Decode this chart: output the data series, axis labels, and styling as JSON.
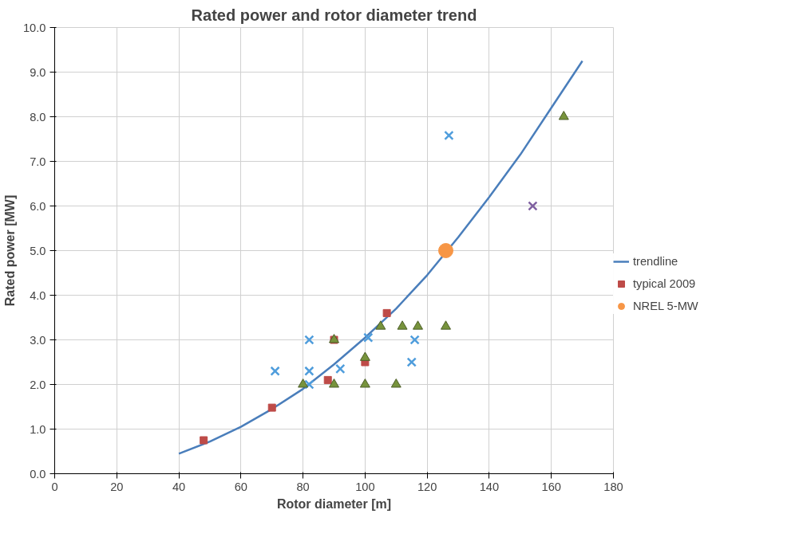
{
  "chart_data": {
    "type": "scatter",
    "title": "Rated power and rotor diameter trend",
    "xlabel": "Rotor diameter [m]",
    "ylabel": "Rated power [MW]",
    "xlim": [
      0,
      180
    ],
    "xticks": [
      0,
      20,
      40,
      60,
      80,
      100,
      120,
      140,
      160,
      180
    ],
    "ylim": [
      0,
      10
    ],
    "yticks": [
      {
        "value": 0,
        "label": "0.0"
      },
      {
        "value": 1,
        "label": "1.0"
      },
      {
        "value": 2,
        "label": "2.0"
      },
      {
        "value": 3,
        "label": "3.0"
      },
      {
        "value": 4,
        "label": "4.0"
      },
      {
        "value": 5,
        "label": "5.0"
      },
      {
        "value": 6,
        "label": "6.0"
      },
      {
        "value": 7,
        "label": "7.0"
      },
      {
        "value": 8,
        "label": "8.0"
      },
      {
        "value": 9,
        "label": "9.0"
      },
      {
        "value": 10,
        "label": "10.0"
      }
    ],
    "grid": true,
    "legend": "right",
    "series": [
      {
        "name": "trendline",
        "type": "line",
        "color": "#4a7ebb",
        "marker": "none",
        "x": [
          40,
          50,
          60,
          70,
          80,
          90,
          100,
          110,
          120,
          130,
          140,
          150,
          160,
          170
        ],
        "values": [
          0.45,
          0.72,
          1.05,
          1.45,
          1.9,
          2.45,
          3.05,
          3.7,
          4.45,
          5.3,
          6.2,
          7.15,
          8.2,
          9.25
        ]
      },
      {
        "name": "typical 2009",
        "color": "#be4b48",
        "marker": "square",
        "x": [
          48,
          70,
          88,
          90,
          100,
          107
        ],
        "values": [
          0.75,
          1.48,
          2.1,
          3.0,
          2.5,
          3.6
        ]
      },
      {
        "name": "NREL 5-MW",
        "color": "#f79646",
        "marker": "circle",
        "x": [
          126
        ],
        "values": [
          5.0
        ]
      },
      {
        "color": "#7f60a0",
        "marker": "cross",
        "x": [
          154
        ],
        "values": [
          6.0
        ]
      },
      {
        "color": "#4f9ddc",
        "marker": "cross",
        "x": [
          71,
          82,
          82,
          82,
          92,
          101,
          115,
          116,
          127
        ],
        "values": [
          2.3,
          3.0,
          2.3,
          2.0,
          2.35,
          3.05,
          2.5,
          3.0,
          7.58
        ]
      },
      {
        "color": "#77933c",
        "marker": "triangle",
        "x": [
          80,
          90,
          90,
          100,
          100,
          105,
          110,
          112,
          117,
          126,
          164
        ],
        "values": [
          2.0,
          3.0,
          2.0,
          2.6,
          2.0,
          3.3,
          2.0,
          3.3,
          3.3,
          3.3,
          8.0
        ]
      }
    ]
  }
}
